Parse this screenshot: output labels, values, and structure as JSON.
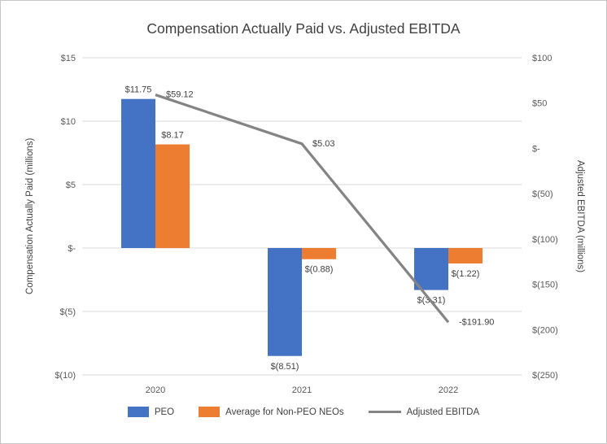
{
  "chart_data": {
    "type": "combo",
    "title": "Compensation Actually Paid vs. Adjusted EBITDA",
    "categories": [
      "2020",
      "2021",
      "2022"
    ],
    "series": [
      {
        "name": "PEO",
        "type": "bar",
        "axis": "left",
        "color": "#4472C4",
        "values": [
          11.75,
          -8.51,
          -3.31
        ],
        "labels": [
          "$11.75",
          "$(8.51)",
          "$(3.31)"
        ]
      },
      {
        "name": "Average for Non-PEO NEOs",
        "type": "bar",
        "axis": "left",
        "color": "#ED7D31",
        "values": [
          8.17,
          -0.88,
          -1.22
        ],
        "labels": [
          "$8.17",
          "$(0.88)",
          "$(1.22)"
        ]
      },
      {
        "name": "Adjusted EBITDA",
        "type": "line",
        "axis": "right",
        "color": "#848484",
        "values": [
          59.12,
          5.03,
          -191.9
        ],
        "labels": [
          "$59.12",
          "$5.03",
          "-$191.90"
        ]
      }
    ],
    "left_axis": {
      "label": "Compensation Actually Paid (millions)",
      "ticks": [
        "$15",
        "$10",
        "$5",
        "$-",
        "$(5)",
        "$(10)"
      ],
      "tick_values": [
        15,
        10,
        5,
        0,
        -5,
        -10
      ],
      "min": -10,
      "max": 15
    },
    "right_axis": {
      "label": "Adjusted EBITDA (millions)",
      "ticks": [
        "$100",
        "$50",
        "$-",
        "$(50)",
        "$(100)",
        "$(150)",
        "$(200)",
        "$(250)"
      ],
      "tick_values": [
        100,
        50,
        0,
        -50,
        -100,
        -150,
        -200,
        -250
      ],
      "min": -250,
      "max": 100
    },
    "legend_position": "bottom",
    "grid": true,
    "colors": {
      "grid": "#D9D9D9",
      "tick_text": "#595959",
      "label_text": "#404040",
      "background": "#FFFFFF",
      "border": "#C6C6C6"
    }
  }
}
